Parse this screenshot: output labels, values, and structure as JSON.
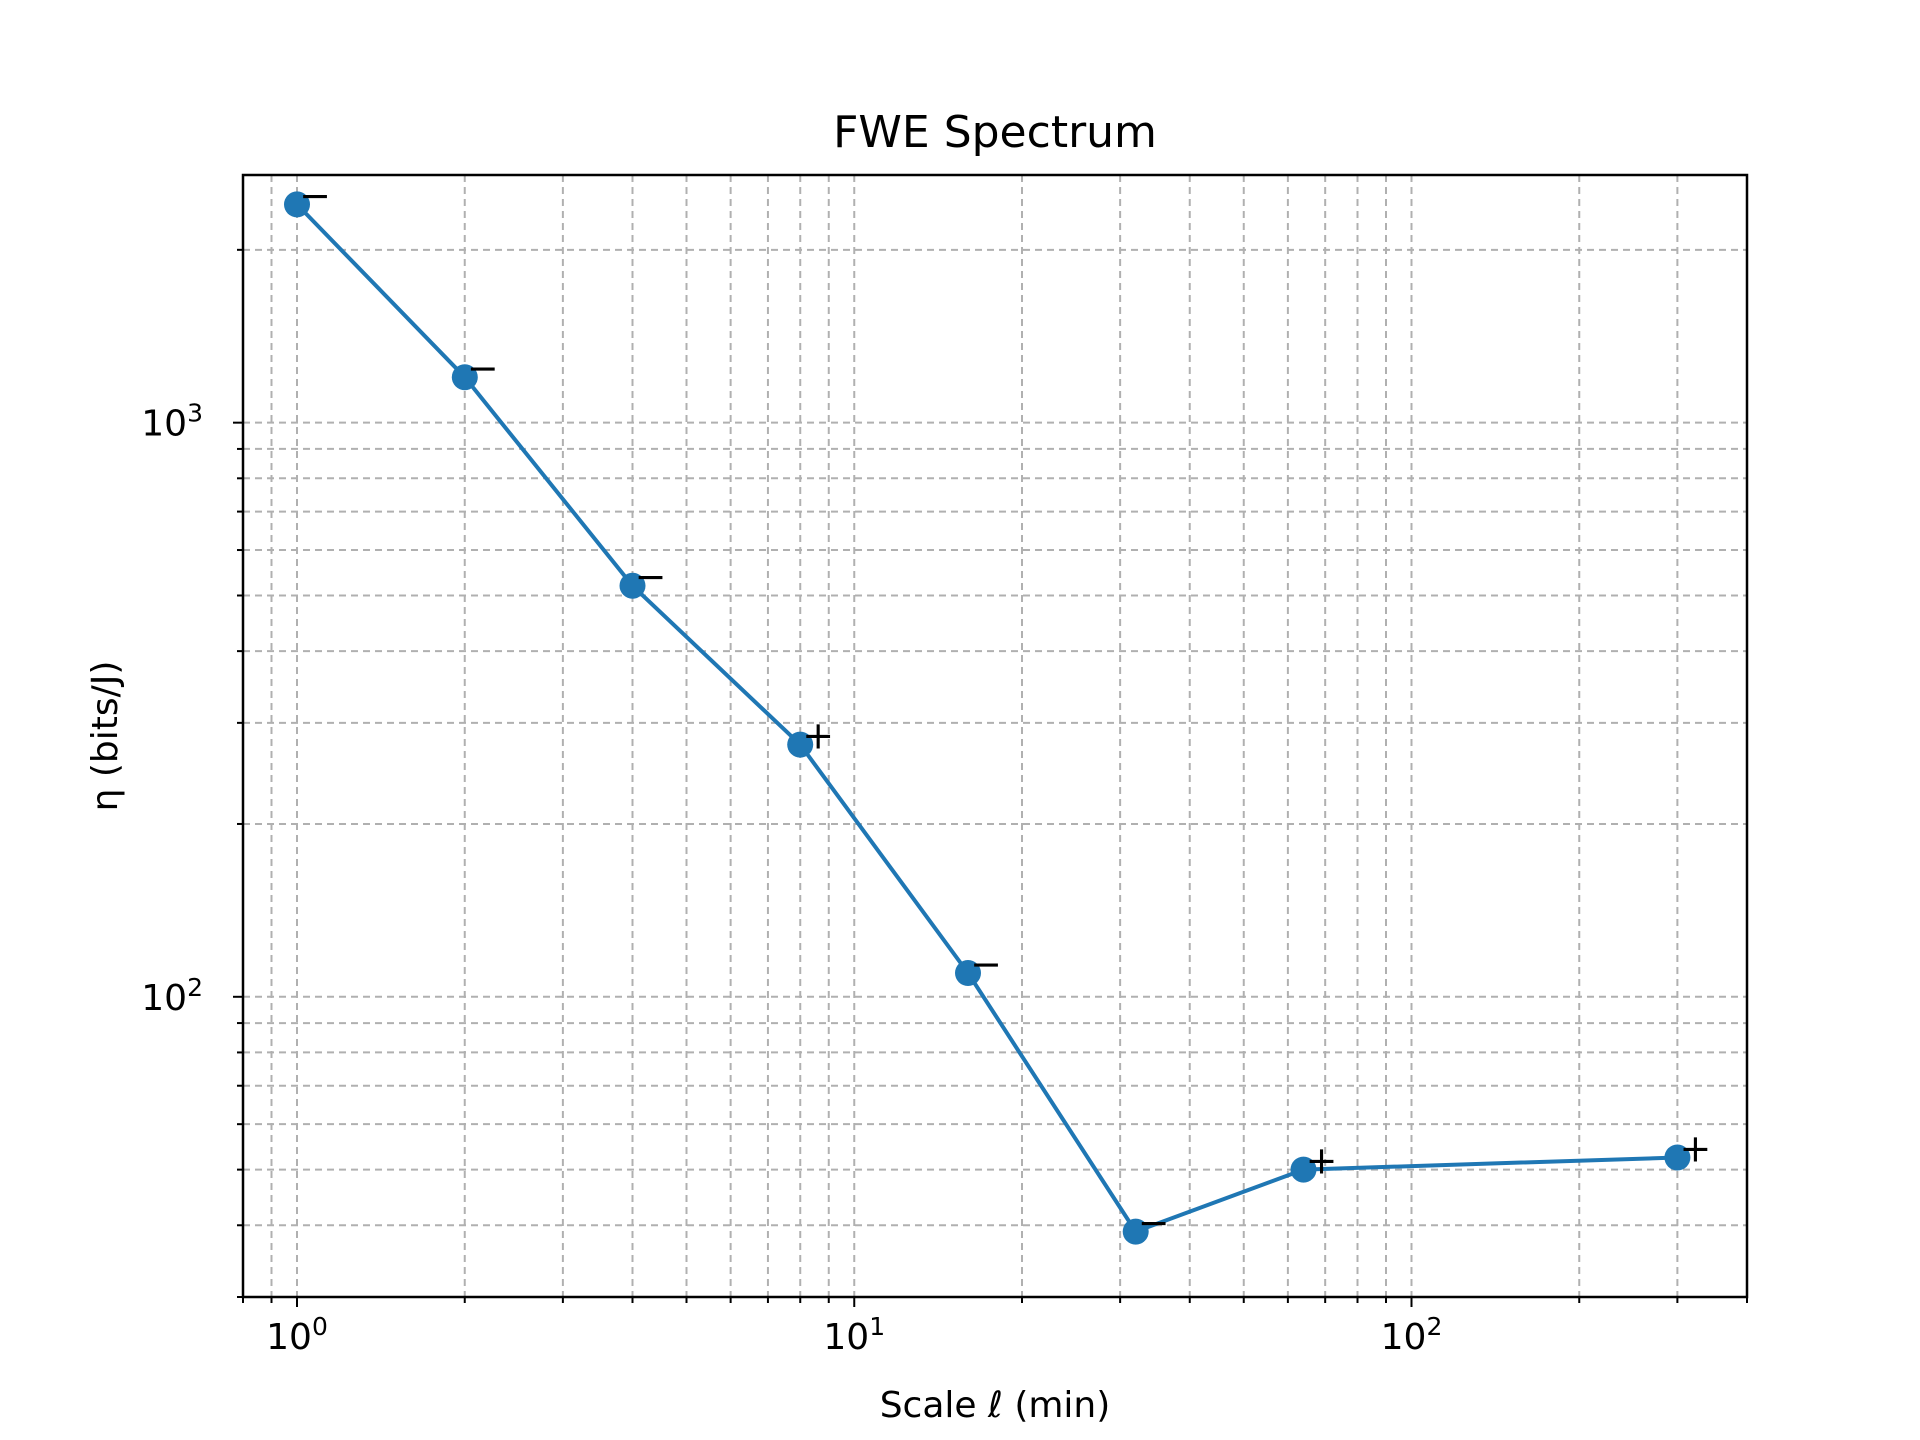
{
  "chart_data": {
    "type": "line",
    "title": "FWE Spectrum",
    "xlabel": "Scale ℓ (min)",
    "ylabel": "η (bits/J)",
    "xscale": "log",
    "yscale": "log",
    "xlim": [
      0.8,
      400
    ],
    "ylim": [
      30,
      2700
    ],
    "grid": "on (major and minor, dashed gray)",
    "x_ticks": [
      {
        "value": 1,
        "base": "10",
        "exp": "0"
      },
      {
        "value": 10,
        "base": "10",
        "exp": "1"
      },
      {
        "value": 100,
        "base": "10",
        "exp": "2"
      }
    ],
    "y_ticks": [
      {
        "value": 100,
        "base": "10",
        "exp": "2"
      },
      {
        "value": 1000,
        "base": "10",
        "exp": "3"
      }
    ],
    "color": "#1f77b4",
    "series": [
      {
        "x": [
          1,
          2,
          4,
          8,
          16,
          32,
          64,
          300
        ],
        "values": [
          2400,
          1200,
          520,
          275,
          110,
          39,
          50,
          52.5
        ],
        "signs": [
          "−",
          "−",
          "−",
          "+",
          "−",
          "−",
          "+",
          "+"
        ]
      }
    ]
  }
}
